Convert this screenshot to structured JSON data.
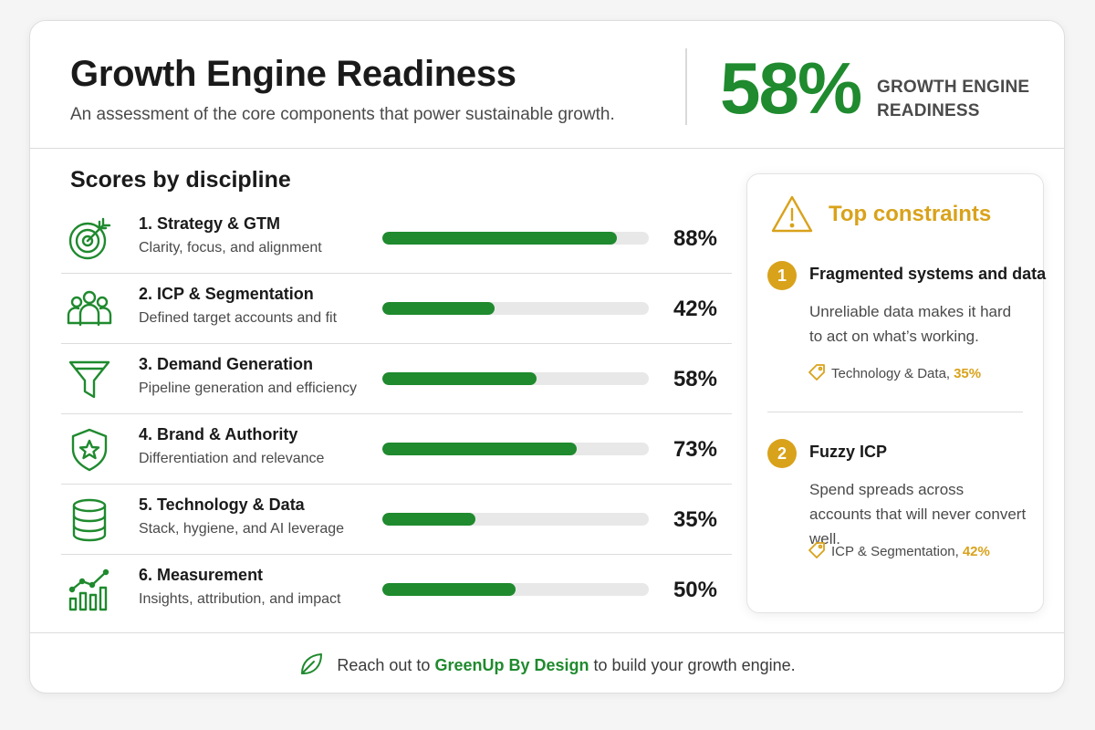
{
  "header": {
    "title": "Growth Engine Readiness",
    "subtitle": "An assessment of the core components that power sustainable growth.",
    "overall_score": "58%",
    "overall_label": "Growth Engine Readiness"
  },
  "section_title": "Scores by discipline",
  "disciplines": [
    {
      "name": "1. Strategy & GTM",
      "desc": "Clarity, focus, and alignment",
      "pct": "88%",
      "value": 88,
      "icon": "target-icon"
    },
    {
      "name": "2. ICP & Segmentation",
      "desc": "Defined target accounts and fit",
      "pct": "42%",
      "value": 42,
      "icon": "users-icon"
    },
    {
      "name": "3. Demand Generation",
      "desc": "Pipeline generation and efficiency",
      "pct": "58%",
      "value": 58,
      "icon": "funnel-icon"
    },
    {
      "name": "4. Brand & Authority",
      "desc": "Differentiation and relevance",
      "pct": "73%",
      "value": 73,
      "icon": "shield-star-icon"
    },
    {
      "name": "5. Technology & Data",
      "desc": "Stack, hygiene, and AI leverage",
      "pct": "35%",
      "value": 35,
      "icon": "database-icon"
    },
    {
      "name": "6. Measurement",
      "desc": "Insights, attribution, and impact",
      "pct": "50%",
      "value": 50,
      "icon": "chart-trend-icon"
    }
  ],
  "constraints": {
    "title": "Top constraints",
    "items": [
      {
        "num": "1",
        "title": "Fragmented systems and data",
        "desc": "Unreliable data makes it hard to act on what’s working.",
        "tag": "Technology & Data,",
        "tag_pct": "35%"
      },
      {
        "num": "2",
        "title": "Fuzzy ICP",
        "desc": "Spend spreads across accounts that will never convert well.",
        "tag": "ICP & Segmentation,",
        "tag_pct": "42%"
      }
    ]
  },
  "footer": {
    "before": "Reach out to",
    "link": "GreenUp By Design",
    "after": "to build your growth engine."
  },
  "colors": {
    "green": "#1f8a2e",
    "gold": "#d9a21b",
    "track": "#e8e8e8"
  }
}
